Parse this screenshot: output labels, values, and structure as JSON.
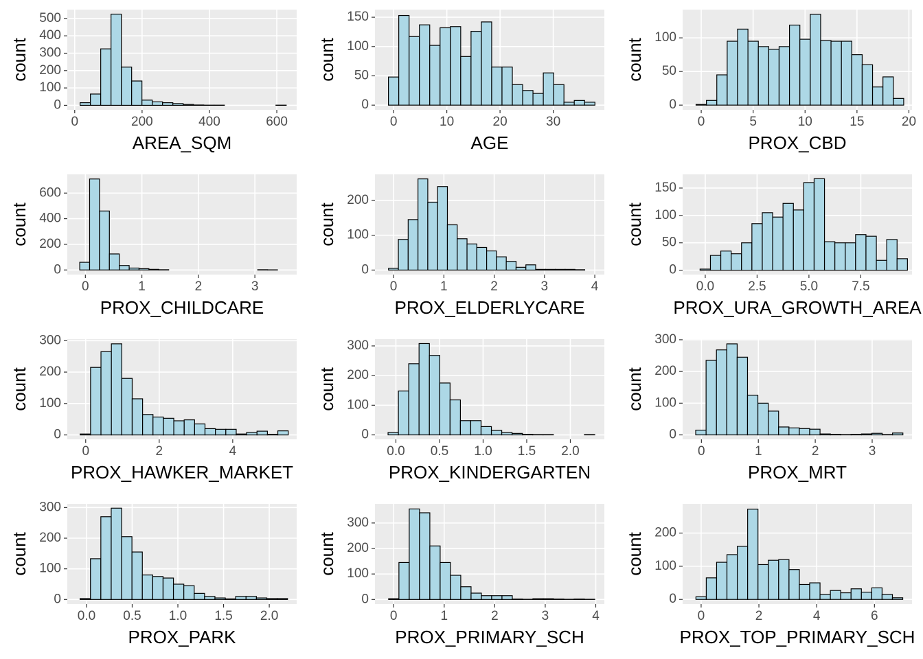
{
  "chart_data": [
    {
      "type": "histogram",
      "x_label": "AREA_SQM",
      "y_label": "count",
      "color": "#add8e6",
      "edgecolor": "#000000",
      "grid": true,
      "bins": [
        16,
        46.6,
        77.2,
        107.8,
        138.4,
        169,
        199.6,
        230.2,
        260.8,
        291.4,
        322,
        352.6,
        383.2,
        413.8,
        444.4,
        475,
        505.6,
        536.2,
        566.8,
        597.4,
        628
      ],
      "values": [
        15,
        65,
        325,
        525,
        220,
        140,
        30,
        20,
        15,
        10,
        5,
        2,
        1,
        1,
        0,
        0,
        0,
        0,
        0,
        1
      ],
      "xlim": [
        -22,
        659
      ],
      "ylim": [
        -26,
        551
      ],
      "xticks": [
        0,
        200,
        400,
        600
      ],
      "yticks": [
        0,
        100,
        200,
        300,
        400,
        500
      ]
    },
    {
      "type": "histogram",
      "x_label": "AGE",
      "y_label": "count",
      "color": "#add8e6",
      "edgecolor": "#000000",
      "grid": true,
      "bins": [
        -0.97,
        0.97,
        2.91,
        4.85,
        6.79,
        8.73,
        10.67,
        12.61,
        14.55,
        16.49,
        18.43,
        20.37,
        22.31,
        24.25,
        26.19,
        28.13,
        30.07,
        32.01,
        33.95,
        35.89,
        37.83
      ],
      "values": [
        48,
        153,
        117,
        137,
        102,
        132,
        134,
        83,
        126,
        142,
        65,
        65,
        35,
        25,
        20,
        55,
        35,
        5,
        8,
        5
      ],
      "xlim": [
        -3.5,
        39.6
      ],
      "ylim": [
        -8,
        163
      ],
      "xticks": [
        0,
        10,
        20,
        30
      ],
      "yticks": [
        0,
        50,
        100,
        150
      ]
    },
    {
      "type": "histogram",
      "x_label": "PROX_CBD",
      "y_label": "count",
      "color": "#add8e6",
      "edgecolor": "#000000",
      "grid": true,
      "bins": [
        -0.5,
        0.5,
        1.5,
        2.5,
        3.5,
        4.5,
        5.5,
        6.5,
        7.5,
        8.5,
        9.5,
        10.5,
        11.5,
        12.5,
        13.5,
        14.5,
        15.5,
        16.5,
        17.5,
        18.5,
        19.5
      ],
      "values": [
        1,
        7,
        45,
        95,
        113,
        95,
        87,
        83,
        87,
        119,
        98,
        135,
        96,
        95,
        95,
        75,
        60,
        27,
        42,
        10
      ],
      "xlim": [
        -1.79,
        20.3
      ],
      "ylim": [
        -7,
        142
      ],
      "xticks": [
        0,
        5,
        10,
        15,
        20
      ],
      "yticks": [
        0,
        50,
        100
      ]
    },
    {
      "type": "histogram",
      "x_label": "PROX_CHILDCARE",
      "y_label": "count",
      "color": "#add8e6",
      "edgecolor": "#000000",
      "grid": true,
      "bins": [
        -0.1,
        0.075,
        0.25,
        0.425,
        0.6,
        0.775,
        0.95,
        1.125,
        1.3,
        1.475,
        1.65,
        1.825,
        2,
        2.175,
        2.35,
        2.525,
        2.7,
        2.875,
        3.05,
        3.225,
        3.4
      ],
      "values": [
        60,
        710,
        460,
        125,
        35,
        15,
        10,
        5,
        2,
        0,
        0,
        0,
        0,
        0,
        0,
        0,
        0,
        0,
        2,
        1
      ],
      "xlim": [
        -0.32,
        3.74
      ],
      "ylim": [
        -36,
        746
      ],
      "xticks": [
        0,
        1,
        2,
        3
      ],
      "yticks": [
        0,
        200,
        400,
        600
      ]
    },
    {
      "type": "histogram",
      "x_label": "PROX_ELDERLYCARE",
      "y_label": "count",
      "color": "#add8e6",
      "edgecolor": "#000000",
      "grid": true,
      "bins": [
        -0.1,
        0.095,
        0.29,
        0.485,
        0.68,
        0.875,
        1.07,
        1.265,
        1.46,
        1.655,
        1.85,
        2.045,
        2.24,
        2.435,
        2.63,
        2.825,
        3.02,
        3.215,
        3.41,
        3.605,
        3.8
      ],
      "values": [
        5,
        88,
        145,
        262,
        195,
        240,
        130,
        90,
        75,
        65,
        55,
        38,
        25,
        8,
        15,
        2,
        2,
        2,
        2,
        1
      ],
      "xlim": [
        -0.37,
        4.19
      ],
      "ylim": [
        -13,
        275
      ],
      "xticks": [
        0,
        1,
        2,
        3,
        4
      ],
      "yticks": [
        0,
        100,
        200
      ]
    },
    {
      "type": "histogram",
      "x_label": "PROX_URA_GROWTH_AREA",
      "y_label": "count",
      "color": "#add8e6",
      "edgecolor": "#000000",
      "grid": true,
      "bins": [
        -0.25,
        0.25,
        0.75,
        1.25,
        1.75,
        2.25,
        2.75,
        3.25,
        3.75,
        4.25,
        4.75,
        5.25,
        5.75,
        6.25,
        6.75,
        7.25,
        7.75,
        8.25,
        8.75,
        9.25,
        9.75
      ],
      "values": [
        2,
        27,
        35,
        30,
        50,
        85,
        105,
        97,
        122,
        110,
        160,
        167,
        52,
        50,
        50,
        65,
        62,
        18,
        56,
        21
      ],
      "xlim": [
        -1.09,
        9.97
      ],
      "ylim": [
        -8,
        175
      ],
      "xticks": [
        {
          "value": 0,
          "label": "0.0"
        },
        2.5,
        {
          "value": 5,
          "label": "5.0"
        },
        7.5
      ],
      "yticks": [
        0,
        50,
        100,
        150
      ]
    },
    {
      "type": "histogram",
      "x_label": "PROX_HAWKER_MARKET",
      "y_label": "count",
      "color": "#add8e6",
      "edgecolor": "#000000",
      "grid": true,
      "bins": [
        -0.15,
        0.133,
        0.416,
        0.699,
        0.982,
        1.265,
        1.548,
        1.831,
        2.114,
        2.397,
        2.68,
        2.963,
        3.246,
        3.529,
        3.812,
        4.095,
        4.378,
        4.661,
        4.944,
        5.227,
        5.51
      ],
      "values": [
        3,
        215,
        265,
        290,
        180,
        115,
        65,
        57,
        53,
        45,
        48,
        35,
        20,
        18,
        18,
        3,
        8,
        12,
        2,
        13
      ],
      "xlim": [
        -0.5,
        5.74
      ],
      "ylim": [
        -14,
        305
      ],
      "xticks": [
        0,
        2,
        4
      ],
      "yticks": [
        0,
        100,
        200,
        300
      ]
    },
    {
      "type": "histogram",
      "x_label": "PROX_KINDERGARTEN",
      "y_label": "count",
      "color": "#add8e6",
      "edgecolor": "#000000",
      "grid": true,
      "bins": [
        -0.09,
        0.0285,
        0.147,
        0.2655,
        0.384,
        0.5025,
        0.621,
        0.7395,
        0.858,
        0.9765,
        1.095,
        1.2135,
        1.332,
        1.4505,
        1.569,
        1.6875,
        1.806,
        1.9245,
        2.043,
        2.1615,
        2.28
      ],
      "values": [
        8,
        148,
        240,
        308,
        268,
        175,
        118,
        48,
        48,
        28,
        15,
        8,
        5,
        2,
        1,
        1,
        0,
        0,
        0,
        1
      ],
      "xlim": [
        -0.24,
        2.39
      ],
      "ylim": [
        -15,
        323
      ],
      "xticks": [
        {
          "value": 0,
          "label": "0.0"
        },
        0.5,
        {
          "value": 1,
          "label": "1.0"
        },
        1.5,
        {
          "value": 2,
          "label": "2.0"
        }
      ],
      "yticks": [
        0,
        100,
        200,
        300
      ]
    },
    {
      "type": "histogram",
      "x_label": "PROX_MRT",
      "y_label": "count",
      "color": "#add8e6",
      "edgecolor": "#000000",
      "grid": true,
      "bins": [
        -0.1,
        0.082,
        0.264,
        0.446,
        0.628,
        0.81,
        0.992,
        1.174,
        1.356,
        1.538,
        1.72,
        1.902,
        2.084,
        2.266,
        2.448,
        2.63,
        2.812,
        2.994,
        3.176,
        3.358,
        3.54
      ],
      "values": [
        15,
        235,
        268,
        287,
        245,
        125,
        100,
        75,
        25,
        22,
        20,
        18,
        3,
        2,
        1,
        2,
        3,
        5,
        1,
        6
      ],
      "xlim": [
        -0.33,
        3.7
      ],
      "ylim": [
        -14,
        302
      ],
      "xticks": [
        0,
        1,
        2,
        3
      ],
      "yticks": [
        0,
        100,
        200,
        300
      ]
    },
    {
      "type": "histogram",
      "x_label": "PROX_PARK",
      "y_label": "count",
      "color": "#add8e6",
      "edgecolor": "#000000",
      "grid": true,
      "bins": [
        -0.07,
        0.0435,
        0.157,
        0.2705,
        0.384,
        0.4975,
        0.611,
        0.7245,
        0.838,
        0.9515,
        1.065,
        1.1785,
        1.292,
        1.4055,
        1.519,
        1.6325,
        1.746,
        1.8595,
        1.973,
        2.0865,
        2.2
      ],
      "values": [
        3,
        133,
        270,
        298,
        205,
        155,
        80,
        75,
        70,
        50,
        45,
        20,
        10,
        5,
        2,
        10,
        10,
        5,
        3,
        3
      ],
      "xlim": [
        -0.21,
        2.3
      ],
      "ylim": [
        -15,
        312
      ],
      "xticks": [
        {
          "value": 0,
          "label": "0.0"
        },
        0.5,
        {
          "value": 1,
          "label": "1.0"
        },
        1.5,
        {
          "value": 2,
          "label": "2.0"
        }
      ],
      "yticks": [
        0,
        100,
        200,
        300
      ]
    },
    {
      "type": "histogram",
      "x_label": "PROX_PRIMARY_SCH",
      "y_label": "count",
      "color": "#add8e6",
      "edgecolor": "#000000",
      "grid": true,
      "bins": [
        -0.1,
        0.104,
        0.308,
        0.512,
        0.716,
        0.92,
        1.124,
        1.328,
        1.532,
        1.736,
        1.94,
        2.144,
        2.348,
        2.552,
        2.756,
        2.96,
        3.164,
        3.368,
        3.572,
        3.776,
        3.98
      ],
      "values": [
        3,
        145,
        355,
        340,
        210,
        145,
        95,
        50,
        25,
        15,
        15,
        15,
        2,
        1,
        3,
        3,
        2,
        1,
        2,
        1
      ],
      "xlim": [
        -0.37,
        4.17
      ],
      "ylim": [
        -18,
        375
      ],
      "xticks": [
        0,
        1,
        2,
        3,
        4
      ],
      "yticks": [
        0,
        100,
        200,
        300
      ]
    },
    {
      "type": "histogram",
      "x_label": "PROX_TOP_PRIMARY_SCH",
      "y_label": "count",
      "color": "#add8e6",
      "edgecolor": "#000000",
      "grid": true,
      "bins": [
        -0.18,
        0.178,
        0.536,
        0.894,
        1.252,
        1.61,
        1.968,
        2.326,
        2.684,
        3.042,
        3.4,
        3.758,
        4.116,
        4.474,
        4.832,
        5.19,
        5.548,
        5.906,
        6.264,
        6.622,
        6.98
      ],
      "values": [
        8,
        65,
        112,
        135,
        160,
        272,
        105,
        118,
        120,
        90,
        45,
        50,
        15,
        27,
        20,
        32,
        22,
        35,
        15,
        5
      ],
      "xlim": [
        -0.64,
        7.3
      ],
      "ylim": [
        -14,
        288
      ],
      "xticks": [
        0,
        2,
        4,
        6
      ],
      "yticks": [
        0,
        100,
        200
      ]
    }
  ]
}
